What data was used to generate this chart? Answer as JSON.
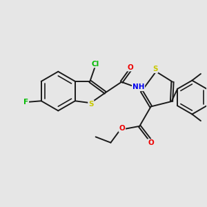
{
  "bg_color": "#e6e6e6",
  "bond_color": "#1a1a1a",
  "bond_width": 1.4,
  "dbo": 0.055,
  "atom_colors": {
    "S": "#c8c800",
    "N": "#0000ee",
    "O": "#ee0000",
    "F": "#00bb00",
    "Cl": "#00bb00",
    "C": "#1a1a1a"
  },
  "afs": 7.5,
  "figsize": [
    3.0,
    3.0
  ],
  "dpi": 100
}
